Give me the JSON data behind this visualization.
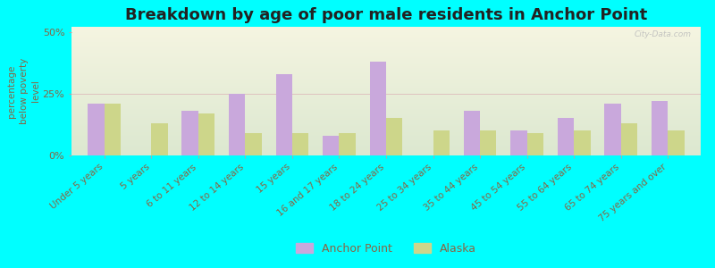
{
  "title": "Breakdown by age of poor male residents in Anchor Point",
  "ylabel": "percentage\nbelow poverty\nlevel",
  "categories": [
    "Under 5 years",
    "5 years",
    "6 to 11 years",
    "12 to 14 years",
    "15 years",
    "16 and 17 years",
    "18 to 24 years",
    "25 to 34 years",
    "35 to 44 years",
    "45 to 54 years",
    "55 to 64 years",
    "65 to 74 years",
    "75 years and over"
  ],
  "anchor_point": [
    21,
    0,
    18,
    25,
    33,
    8,
    38,
    0,
    18,
    10,
    15,
    21,
    22
  ],
  "alaska": [
    21,
    13,
    17,
    9,
    9,
    9,
    15,
    10,
    10,
    9,
    10,
    13,
    10
  ],
  "ylim": [
    0,
    52
  ],
  "yticks": [
    0,
    25,
    50
  ],
  "ytick_labels": [
    "0%",
    "25%",
    "50%"
  ],
  "bar_color_anchor": "#c9a8dc",
  "bar_color_alaska": "#cdd68a",
  "background_color": "#00ffff",
  "bar_width": 0.35,
  "legend_anchor": "Anchor Point",
  "legend_alaska": "Alaska",
  "title_fontsize": 13,
  "label_fontsize": 7.5,
  "tick_fontsize": 8,
  "watermark": "City-Data.com",
  "text_color": "#886644",
  "title_color": "#222222"
}
